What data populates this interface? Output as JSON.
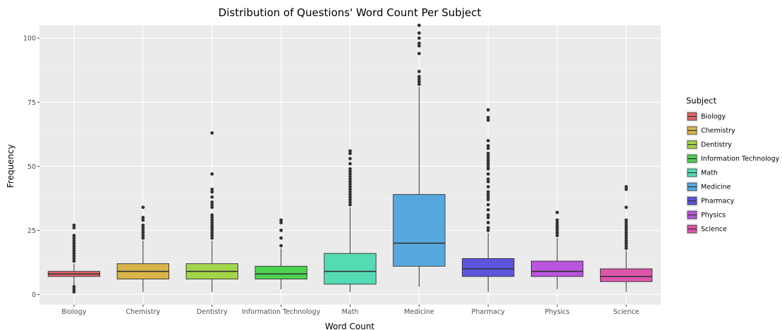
{
  "chart_data": {
    "type": "boxplot",
    "title": "Distribution of Questions' Word Count Per Subject",
    "xlabel": "Word Count",
    "ylabel": "Frequency",
    "ylim": [
      -4,
      105
    ],
    "yticks": [
      0,
      25,
      50,
      75,
      100
    ],
    "ytick_labels": [
      "0",
      "25",
      "50",
      "75",
      "100"
    ],
    "grid": true,
    "legend": {
      "title": "Subject",
      "placement": "right"
    },
    "categories": [
      "Biology",
      "Chemistry",
      "Dentistry",
      "Information Technology",
      "Math",
      "Medicine",
      "Pharmacy",
      "Physics",
      "Science"
    ],
    "colors": [
      "#e06666",
      "#d9b44a",
      "#a3d54a",
      "#4fd24f",
      "#55dbb4",
      "#57a9dd",
      "#5b54dc",
      "#ba55dd",
      "#dd55aa"
    ],
    "boxes": [
      {
        "category": "Biology",
        "whisker_low": 3,
        "q1": 7,
        "median": 8,
        "q3": 9,
        "whisker_high": 12,
        "outliers": [
          1,
          2,
          3,
          13,
          14,
          15,
          16,
          17,
          18,
          19,
          20,
          21,
          22,
          23,
          26,
          27
        ]
      },
      {
        "category": "Chemistry",
        "whisker_low": 1,
        "q1": 6,
        "median": 9,
        "q3": 12,
        "whisker_high": 21,
        "outliers": [
          22,
          23,
          24,
          25,
          26,
          27,
          29,
          30,
          34
        ]
      },
      {
        "category": "Dentistry",
        "whisker_low": 1,
        "q1": 6,
        "median": 9,
        "q3": 12,
        "whisker_high": 21,
        "outliers": [
          22,
          23,
          24,
          25,
          26,
          27,
          28,
          29,
          30,
          31,
          34,
          35,
          36,
          38,
          40,
          41,
          47,
          63
        ]
      },
      {
        "category": "Information Technology",
        "whisker_low": 2,
        "q1": 6,
        "median": 8,
        "q3": 11,
        "whisker_high": 18,
        "outliers": [
          19,
          22,
          25,
          28,
          29
        ]
      },
      {
        "category": "Math",
        "whisker_low": 1,
        "q1": 4,
        "median": 9,
        "q3": 16,
        "whisker_high": 34,
        "outliers": [
          35,
          36,
          37,
          38,
          39,
          40,
          41,
          42,
          43,
          44,
          45,
          46,
          47,
          48,
          49,
          51,
          53,
          55,
          56
        ]
      },
      {
        "category": "Medicine",
        "whisker_low": 3,
        "q1": 11,
        "median": 20,
        "q3": 39,
        "whisker_high": 81,
        "outliers": [
          82,
          83,
          84,
          85,
          87,
          94,
          97,
          98,
          100,
          102,
          105
        ]
      },
      {
        "category": "Pharmacy",
        "whisker_low": 1,
        "q1": 7,
        "median": 10,
        "q3": 14,
        "whisker_high": 24,
        "outliers": [
          25,
          26,
          28,
          30,
          31,
          33,
          35,
          37,
          38,
          39,
          40,
          42,
          44,
          45,
          47,
          49,
          50,
          51,
          52,
          53,
          54,
          55,
          57,
          58,
          60,
          68,
          69,
          72
        ]
      },
      {
        "category": "Physics",
        "whisker_low": 2,
        "q1": 7,
        "median": 9,
        "q3": 13,
        "whisker_high": 22,
        "outliers": [
          23,
          24,
          25,
          26,
          27,
          28,
          29,
          32
        ]
      },
      {
        "category": "Science",
        "whisker_low": 1,
        "q1": 5,
        "median": 7,
        "q3": 10,
        "whisker_high": 17,
        "outliers": [
          18,
          19,
          20,
          21,
          22,
          23,
          24,
          25,
          26,
          27,
          28,
          29,
          34,
          41,
          42
        ]
      }
    ]
  }
}
